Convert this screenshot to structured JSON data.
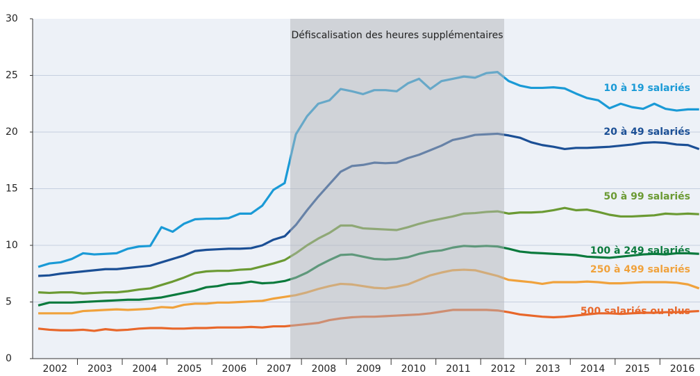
{
  "chart_data": {
    "type": "line",
    "annotation": "Défiscalisation des heures supplémentaires",
    "categories": [
      "2002",
      null,
      null,
      null,
      "2003",
      null,
      null,
      null,
      "2004",
      null,
      null,
      null,
      "2005",
      null,
      null,
      null,
      "2006",
      null,
      null,
      null,
      "2007",
      null,
      null,
      null,
      "2008",
      null,
      null,
      null,
      "2009",
      null,
      null,
      null,
      "2010",
      null,
      null,
      null,
      "2011",
      null,
      null,
      null,
      "2012",
      null,
      null,
      null,
      "2013",
      null,
      null,
      null,
      "2014",
      null,
      null,
      null,
      "2015",
      null,
      null,
      null,
      "2016",
      null,
      null,
      null
    ],
    "ylim": [
      0,
      30
    ],
    "yticks": [
      0,
      5,
      10,
      15,
      20,
      25,
      30
    ],
    "grid": true,
    "series": [
      {
        "name": "10 à 19 salariés",
        "color": "#1a9ad6",
        "values": [
          8.1,
          8.4,
          8.5,
          8.8,
          9.3,
          9.2,
          9.25,
          9.3,
          9.7,
          9.9,
          9.95,
          11.6,
          11.2,
          11.9,
          12.3,
          12.35,
          12.35,
          12.4,
          12.8,
          12.8,
          13.5,
          14.9,
          15.5,
          19.8,
          21.4,
          22.5,
          22.8,
          23.8,
          23.6,
          23.35,
          23.7,
          23.7,
          23.6,
          24.3,
          24.7,
          23.8,
          24.5,
          24.7,
          24.9,
          24.8,
          25.2,
          25.3,
          24.5,
          24.1,
          23.9,
          23.9,
          23.95,
          23.85,
          23.4,
          23.0,
          22.8,
          22.1,
          22.5,
          22.2,
          22.05,
          22.5,
          22.05,
          21.9,
          22.0,
          22.0
        ]
      },
      {
        "name": "20 à 49 salariés",
        "color": "#1b4f95",
        "values": [
          7.3,
          7.35,
          7.5,
          7.6,
          7.7,
          7.8,
          7.9,
          7.9,
          8.0,
          8.1,
          8.2,
          8.5,
          8.8,
          9.1,
          9.5,
          9.6,
          9.65,
          9.7,
          9.7,
          9.75,
          10.0,
          10.5,
          10.8,
          11.8,
          13.1,
          14.3,
          15.4,
          16.5,
          17.0,
          17.1,
          17.3,
          17.25,
          17.3,
          17.7,
          18.0,
          18.4,
          18.8,
          19.3,
          19.5,
          19.75,
          19.8,
          19.85,
          19.7,
          19.5,
          19.1,
          18.85,
          18.7,
          18.5,
          18.6,
          18.6,
          18.65,
          18.7,
          18.8,
          18.9,
          19.05,
          19.1,
          19.05,
          18.9,
          18.85,
          18.5
        ]
      },
      {
        "name": "50 à 99 salariés",
        "color": "#6b9a33",
        "values": [
          5.85,
          5.8,
          5.85,
          5.85,
          5.75,
          5.8,
          5.85,
          5.85,
          5.95,
          6.1,
          6.2,
          6.5,
          6.8,
          7.15,
          7.55,
          7.7,
          7.75,
          7.75,
          7.85,
          7.9,
          8.15,
          8.4,
          8.7,
          9.3,
          10.0,
          10.6,
          11.1,
          11.75,
          11.75,
          11.5,
          11.45,
          11.4,
          11.35,
          11.6,
          11.9,
          12.15,
          12.35,
          12.55,
          12.8,
          12.85,
          12.95,
          13.0,
          12.8,
          12.9,
          12.9,
          12.95,
          13.1,
          13.3,
          13.1,
          13.15,
          12.95,
          12.7,
          12.55,
          12.55,
          12.6,
          12.65,
          12.8,
          12.75,
          12.8,
          12.75
        ]
      },
      {
        "name": "100 à 249 salariés",
        "color": "#0b7a3d",
        "values": [
          4.7,
          4.95,
          4.95,
          4.95,
          5.0,
          5.05,
          5.1,
          5.15,
          5.2,
          5.2,
          5.3,
          5.4,
          5.6,
          5.8,
          6.0,
          6.3,
          6.4,
          6.6,
          6.65,
          6.8,
          6.65,
          6.7,
          6.85,
          7.15,
          7.6,
          8.2,
          8.7,
          9.15,
          9.2,
          9.0,
          8.8,
          8.75,
          8.8,
          8.95,
          9.25,
          9.45,
          9.55,
          9.8,
          9.95,
          9.9,
          9.95,
          9.9,
          9.7,
          9.45,
          9.35,
          9.3,
          9.25,
          9.2,
          9.15,
          9.0,
          8.95,
          8.9,
          9.0,
          9.1,
          9.2,
          9.25,
          9.2,
          9.3,
          9.3,
          9.25
        ]
      },
      {
        "name": "250 à 499 salariés",
        "color": "#f0a23c",
        "values": [
          4.0,
          4.0,
          4.0,
          4.0,
          4.2,
          4.25,
          4.3,
          4.35,
          4.3,
          4.35,
          4.4,
          4.55,
          4.5,
          4.75,
          4.85,
          4.85,
          4.95,
          4.95,
          5.0,
          5.05,
          5.1,
          5.3,
          5.45,
          5.6,
          5.85,
          6.15,
          6.4,
          6.6,
          6.55,
          6.4,
          6.25,
          6.2,
          6.35,
          6.55,
          6.95,
          7.35,
          7.6,
          7.8,
          7.85,
          7.8,
          7.55,
          7.3,
          6.95,
          6.85,
          6.75,
          6.6,
          6.75,
          6.75,
          6.75,
          6.8,
          6.75,
          6.65,
          6.65,
          6.7,
          6.75,
          6.75,
          6.75,
          6.7,
          6.55,
          6.2
        ]
      },
      {
        "name": "500 salariés ou plus",
        "color": "#e8672a",
        "values": [
          2.65,
          2.55,
          2.5,
          2.5,
          2.55,
          2.45,
          2.6,
          2.5,
          2.55,
          2.65,
          2.7,
          2.7,
          2.65,
          2.65,
          2.7,
          2.7,
          2.75,
          2.75,
          2.75,
          2.8,
          2.75,
          2.85,
          2.85,
          2.95,
          3.05,
          3.15,
          3.4,
          3.55,
          3.65,
          3.7,
          3.7,
          3.75,
          3.8,
          3.85,
          3.9,
          4.0,
          4.15,
          4.3,
          4.3,
          4.3,
          4.3,
          4.25,
          4.1,
          3.9,
          3.8,
          3.7,
          3.65,
          3.7,
          3.8,
          3.9,
          4.0,
          4.0,
          3.95,
          4.0,
          4.05,
          4.05,
          4.1,
          4.1,
          4.15,
          4.2
        ]
      }
    ]
  }
}
